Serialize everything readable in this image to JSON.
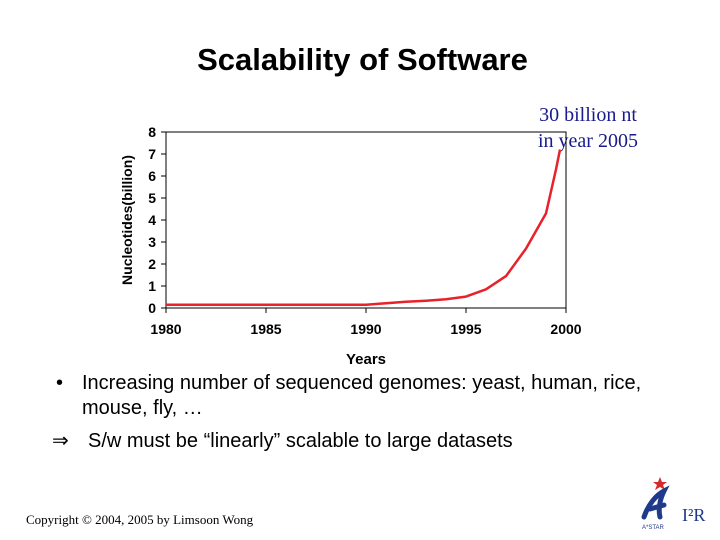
{
  "slide": {
    "title": "Scalability of Software",
    "annotation_line1": "30 billion nt",
    "annotation_line2": "in year 2005",
    "bullet_symbol": "•",
    "bullet_text": "Increasing number of sequenced genomes: yeast, human, rice, mouse, fly, …",
    "implies_symbol": "⇒",
    "implies_text": "S/w must be “linearly” scalable to large datasets",
    "footer": "Copyright © 2004, 2005 by Limsoon Wong",
    "logo_text": "I²R",
    "logo_subtext": "A*STAR"
  },
  "colors": {
    "line": "#e8212a",
    "annotation": "#1a1a8c",
    "logo_blue": "#1f3a8a",
    "logo_red": "#d42a2a"
  },
  "chart_data": {
    "type": "line",
    "title": "",
    "xlabel": "Years",
    "ylabel": "Nucleotides(billion)",
    "xlim": [
      1980,
      2000
    ],
    "ylim": [
      0,
      8
    ],
    "xticks": [
      1980,
      1985,
      1990,
      1995,
      2000
    ],
    "yticks": [
      0,
      1,
      2,
      3,
      4,
      5,
      6,
      7,
      8
    ],
    "grid": false,
    "series": [
      {
        "x": [
          1980,
          1982,
          1984,
          1986,
          1988,
          1990,
          1991,
          1992,
          1993,
          1994,
          1995,
          1996,
          1997,
          1998,
          1999,
          1999.5,
          1999.7
        ],
        "y": [
          0.15,
          0.15,
          0.15,
          0.15,
          0.15,
          0.15,
          0.22,
          0.28,
          0.33,
          0.4,
          0.52,
          0.85,
          1.45,
          2.7,
          4.3,
          6.3,
          7.2
        ]
      }
    ]
  }
}
